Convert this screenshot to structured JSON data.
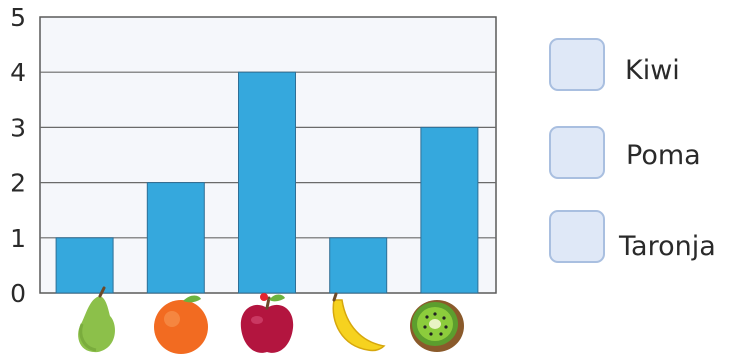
{
  "chart_data": {
    "type": "bar",
    "categories": [
      "pear",
      "orange",
      "apple",
      "banana",
      "kiwi"
    ],
    "values": [
      1,
      2,
      4,
      1,
      3
    ],
    "ylim": [
      0,
      5
    ],
    "yticks": [
      "0",
      "1",
      "2",
      "3",
      "4",
      "5"
    ],
    "grid": true,
    "bar_color": "#35a8dd",
    "category_icons": [
      "pear-icon",
      "orange-icon",
      "apple-icon",
      "banana-icon",
      "kiwi-icon"
    ]
  },
  "answers": [
    {
      "label": "Kiwi",
      "value": ""
    },
    {
      "label": "Poma",
      "value": ""
    },
    {
      "label": "Taronja",
      "value": ""
    }
  ],
  "colors": {
    "pear": "#8cc04a",
    "orange": "#f26b21",
    "apple": "#b3153f",
    "banana": "#f6d21f",
    "kiwi": "#8a5a2b",
    "box_fill": "#dfe8f7",
    "box_border": "#a9bfe0"
  }
}
